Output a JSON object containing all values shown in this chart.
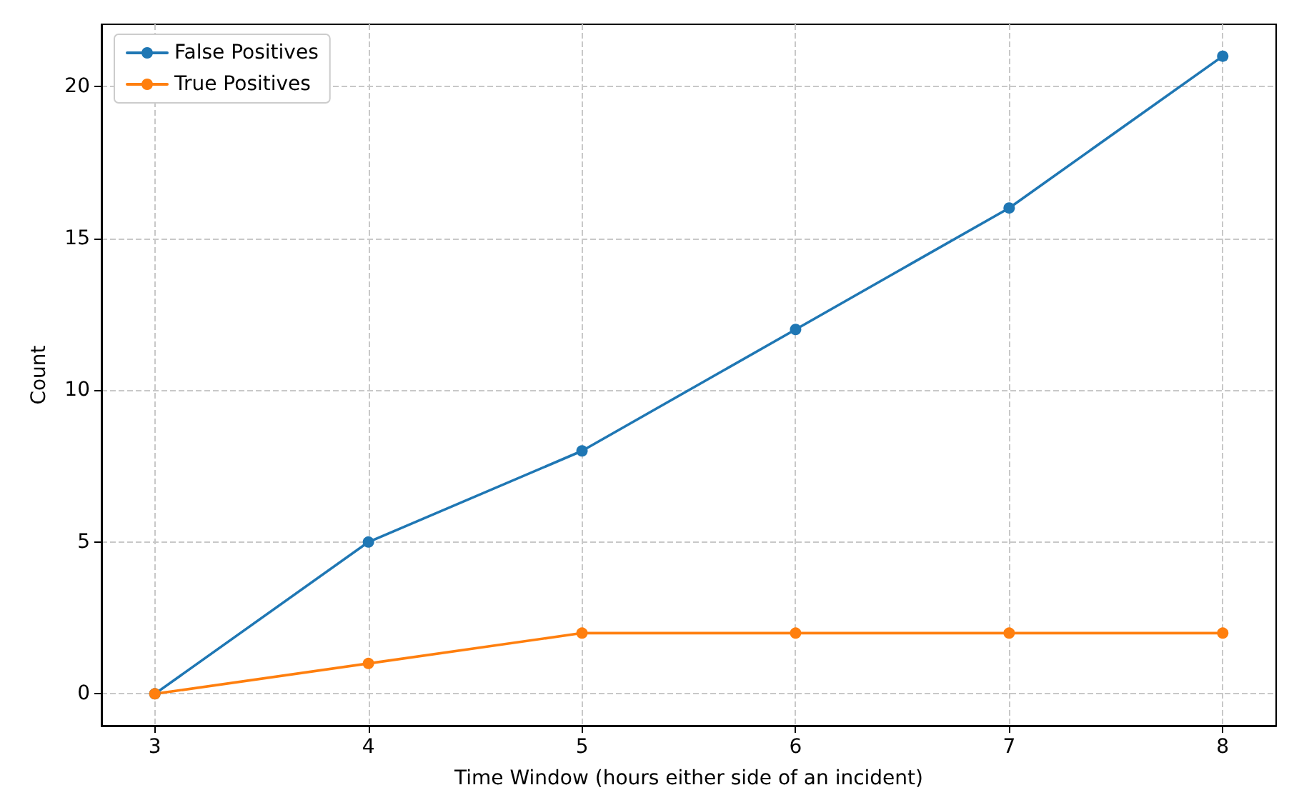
{
  "chart_data": {
    "type": "line",
    "xlabel": "Time Window (hours either side of an incident)",
    "ylabel": "Count",
    "x": [
      3,
      4,
      5,
      6,
      7,
      8
    ],
    "series": [
      {
        "name": "False Positives",
        "color": "#1f77b4",
        "values": [
          0,
          5,
          8,
          12,
          16,
          21
        ]
      },
      {
        "name": "True Positives",
        "color": "#ff7f0e",
        "values": [
          0,
          1,
          2,
          2,
          2,
          2
        ]
      }
    ],
    "xlim": [
      2.75,
      8.25
    ],
    "xticks": [
      3,
      4,
      5,
      6,
      7,
      8
    ],
    "ylim": [
      -1.05,
      22.05
    ],
    "yticks": [
      0,
      5,
      10,
      15,
      20
    ],
    "grid": true,
    "legend": "top left",
    "marker": "circle",
    "line_style": "solid"
  }
}
